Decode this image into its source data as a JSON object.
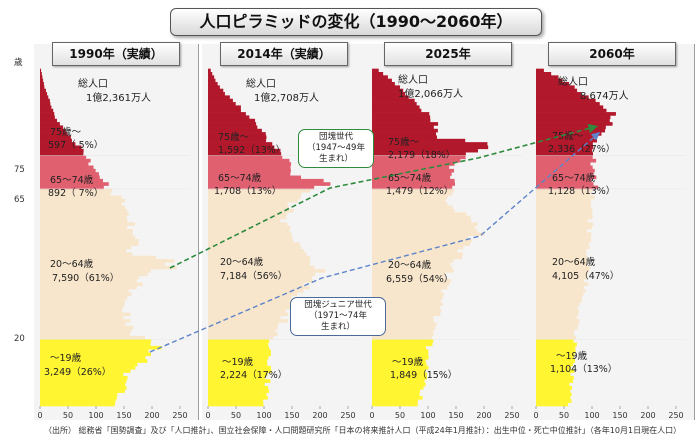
{
  "title": "人口ピラミッドの変化（1990～2060年）",
  "age_axis": {
    "unit": "歳",
    "ticks": [
      "75",
      "65",
      "20"
    ]
  },
  "x_axis": {
    "unit": "万人",
    "ticks": [
      "0",
      "50",
      "100",
      "150",
      "200",
      "250"
    ]
  },
  "colors": {
    "age75": "#b2182b",
    "age65": "#e06070",
    "age20": "#f8e6cc",
    "age0": "#fff530",
    "bg": "#f4f4f4",
    "green_arrow": "#2e8b3e",
    "blue_arrow": "#5d83c9"
  },
  "chart_data": [
    {
      "type": "bar",
      "orientation": "horizontal",
      "year": "1990年（実績）",
      "total_label": "総人口",
      "total_value": "1億2,361万人",
      "xlim": [
        0,
        250
      ],
      "categories": [
        "75歳～",
        "65～74歳",
        "20～64歳",
        "～19歳"
      ],
      "values": [
        597,
        892,
        7590,
        3249
      ],
      "labels": [
        "75歳～",
        "65～74歳",
        "20～64歳",
        "～19歳"
      ],
      "value_labels": [
        "597（ 5%）",
        "892（ 7%）",
        "7,590（61%）",
        "3,249（26%）"
      ]
    },
    {
      "type": "bar",
      "orientation": "horizontal",
      "year": "2014年（実績）",
      "total_label": "総人口",
      "total_value": "1億2,708万人",
      "xlim": [
        0,
        250
      ],
      "categories": [
        "75歳～",
        "65～74歳",
        "20～64歳",
        "～19歳"
      ],
      "values": [
        1592,
        1708,
        7184,
        2224
      ],
      "labels": [
        "75歳～",
        "65～74歳",
        "20～64歳",
        "～19歳"
      ],
      "value_labels": [
        "1,592（13%）",
        "1,708（13%）",
        "7,184（56%）",
        "2,224（17%）"
      ]
    },
    {
      "type": "bar",
      "orientation": "horizontal",
      "year": "2025年",
      "total_label": "総人口",
      "total_value": "1億2,066万人",
      "xlim": [
        0,
        250
      ],
      "categories": [
        "75歳～",
        "65～74歳",
        "20～64歳",
        "～19歳"
      ],
      "values": [
        2179,
        1479,
        6559,
        1849
      ],
      "labels": [
        "75歳～",
        "65～74歳",
        "20～64歳",
        "～19歳"
      ],
      "value_labels": [
        "2,179（18%）",
        "1,479（12%）",
        "6,559（54%）",
        "1,849（15%）"
      ]
    },
    {
      "type": "bar",
      "orientation": "horizontal",
      "year": "2060年",
      "total_label": "総人口",
      "total_value": "8,674万人",
      "xlim": [
        0,
        250
      ],
      "categories": [
        "75歳～",
        "65～74歳",
        "20～64歳",
        "～19歳"
      ],
      "values": [
        2336,
        1128,
        4105,
        1104
      ],
      "labels": [
        "75歳～",
        "65～74歳",
        "20～64歳",
        "～19歳"
      ],
      "value_labels": [
        "2,336（27%）",
        "1,128（13%）",
        "4,105（47%）",
        "1,104（13%）"
      ]
    }
  ],
  "callouts": {
    "dankai": {
      "name": "団塊世代",
      "years": "（1947～49年",
      "born": "生まれ）"
    },
    "junior": {
      "name": "団塊ジュニア世代",
      "years": "（1971～74年",
      "born": "生まれ）"
    }
  },
  "source": "（出所）  総務省「国勢調査」及び「人口推計」、国立社会保障・人口問題研究所「日本の将来推計人口（平成24年1月推計）：出生中位・死亡中位推計」（各年10月1日現在人口）"
}
